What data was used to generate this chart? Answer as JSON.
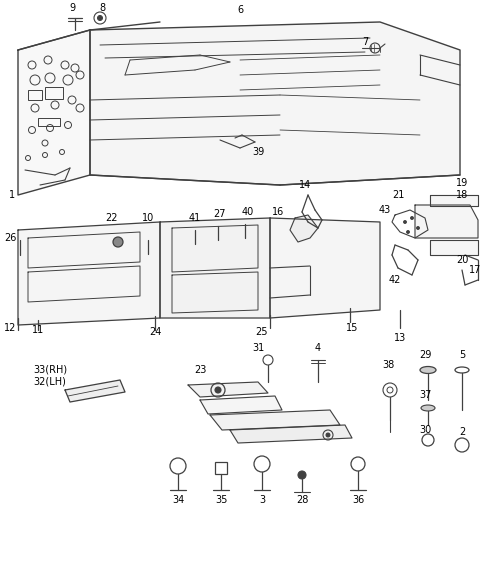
{
  "bg": "#ffffff",
  "lc": "#404040",
  "tc": "#000000",
  "fig_w": 4.8,
  "fig_h": 5.76,
  "dpi": 100
}
